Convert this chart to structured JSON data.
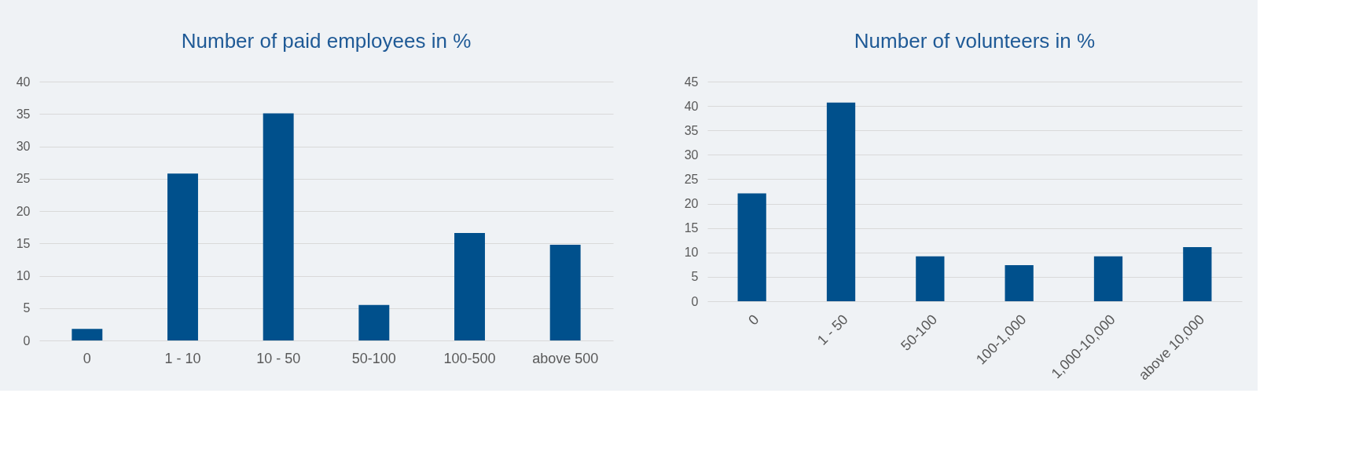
{
  "chart_data": [
    {
      "type": "bar",
      "title": "Number of paid employees in %",
      "categories": [
        "0",
        "1  -  10",
        "10  -  50",
        "50-100",
        "100-500",
        "above 500"
      ],
      "series": [
        {
          "color": "#00508c",
          "values": [
            1.8,
            25.8,
            35.1,
            5.5,
            16.6,
            14.8
          ]
        }
      ],
      "ylim": [
        0,
        40
      ],
      "yticks": [
        0,
        5,
        10,
        15,
        20,
        25,
        30,
        35,
        40
      ],
      "grid": "y"
    },
    {
      "type": "bar",
      "title": "Number of volunteers in %",
      "categories": [
        "0",
        "1  -  50",
        "50-100",
        "100-1,000",
        "1,000-10,000",
        "above 10,000"
      ],
      "series": [
        {
          "color": "#00508c",
          "values": [
            22.1,
            40.7,
            9.2,
            7.4,
            9.2,
            11.1
          ]
        }
      ],
      "ylim": [
        0,
        45
      ],
      "yticks": [
        0,
        5,
        10,
        15,
        20,
        25,
        30,
        35,
        40,
        45
      ],
      "grid": "y"
    }
  ]
}
